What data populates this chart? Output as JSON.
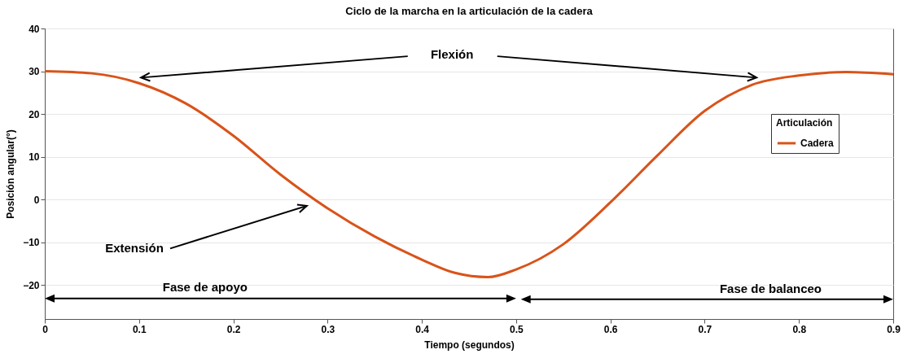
{
  "chart_data": {
    "type": "line",
    "title": "Ciclo de la marcha en la articulación de la cadera",
    "xlabel": "Tiempo (segundos)",
    "ylabel": "Posición angular(°)",
    "legend_title": "Articulación",
    "x": [
      0,
      0.05,
      0.1,
      0.15,
      0.2,
      0.25,
      0.3,
      0.35,
      0.4,
      0.435,
      0.47,
      0.5,
      0.55,
      0.6,
      0.65,
      0.7,
      0.75,
      0.8,
      0.85,
      0.9
    ],
    "series": [
      {
        "name": "Cadera",
        "color": "#d95319",
        "values": [
          30,
          29.5,
          27.2,
          22.4,
          14.9,
          5.8,
          -2.1,
          -8.7,
          -14.1,
          -17.2,
          -18.2,
          -16.4,
          -10.5,
          -0.7,
          10.3,
          20.7,
          26.8,
          29,
          29.8,
          29.3
        ]
      }
    ],
    "xlim": [
      0,
      0.9
    ],
    "xticks": [
      0,
      0.1,
      0.2,
      0.3,
      0.4,
      0.5,
      0.6,
      0.7,
      0.8,
      0.9
    ],
    "ylim": [
      -28,
      40
    ],
    "yticks": [
      -20,
      -10,
      0,
      10,
      20,
      30,
      40
    ],
    "grid": "y",
    "legend": "top right",
    "marker": "none",
    "line_style": "solid",
    "annotations": [
      "Flexión",
      "Extensión",
      "Fase de apoyo",
      "Fase de balanceo"
    ]
  }
}
